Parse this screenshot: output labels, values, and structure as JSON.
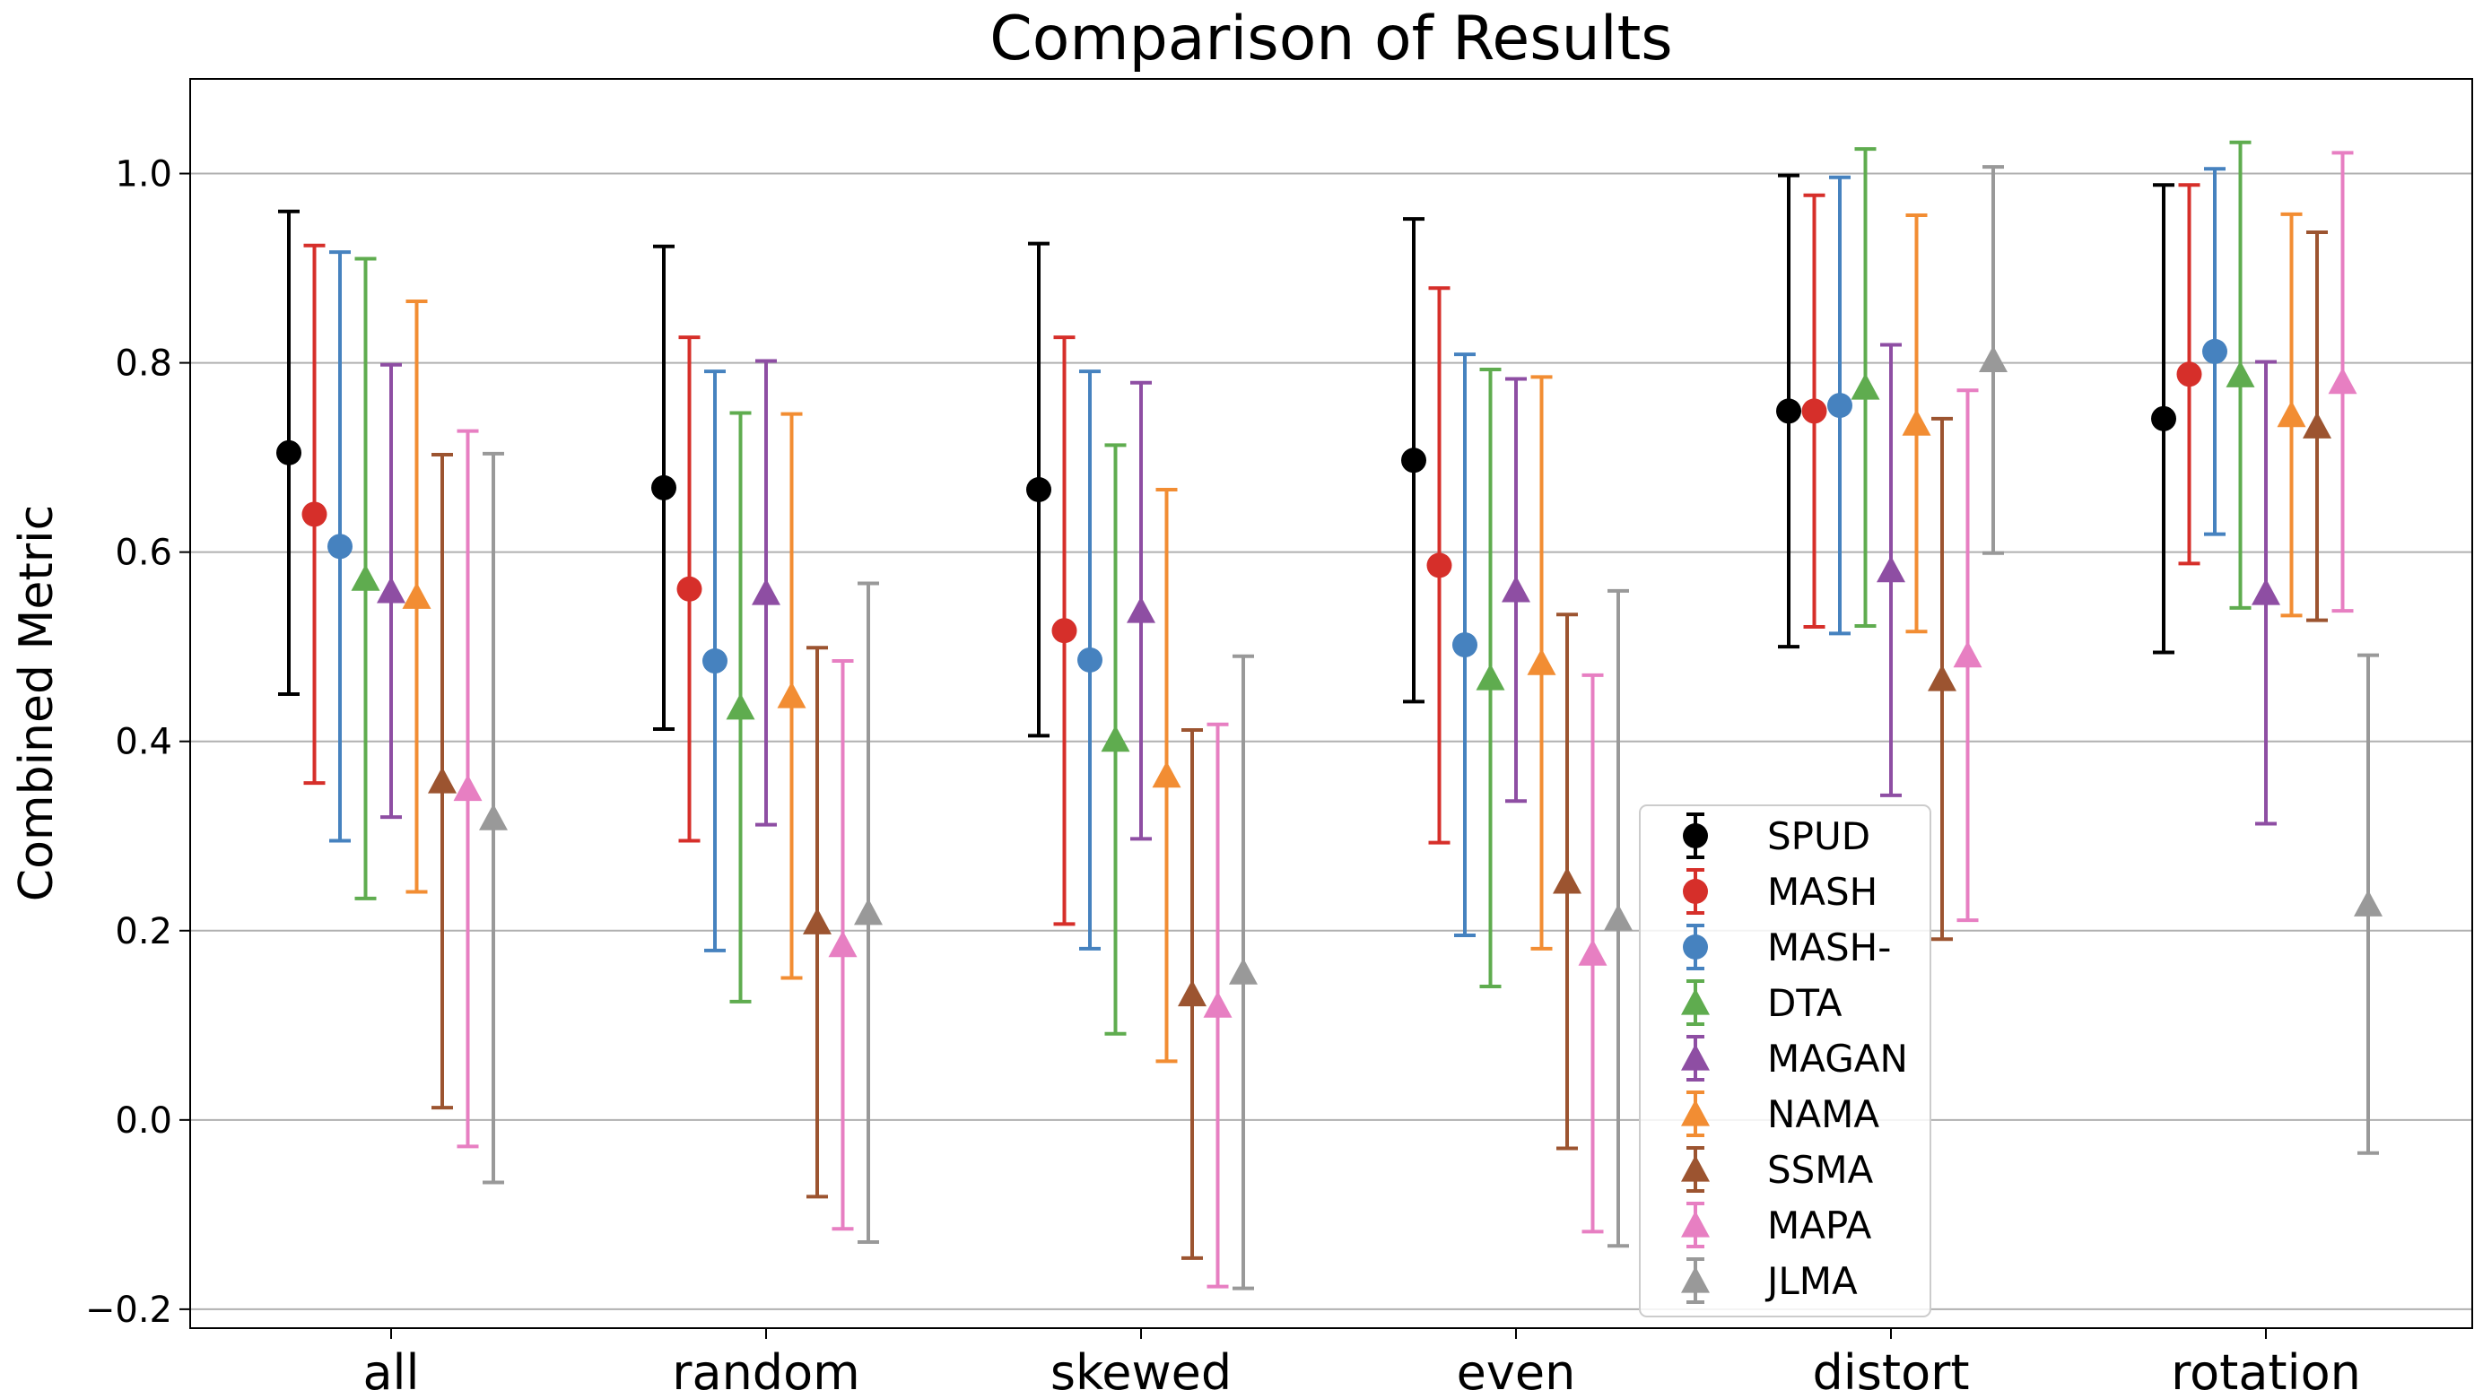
{
  "chart_data": {
    "type": "errorbar",
    "title": "Comparison of Results",
    "xlabel": "",
    "ylabel": "Combined Metric",
    "ylim": [
      -0.22,
      1.1
    ],
    "yticks": [
      -0.2,
      0.0,
      0.2,
      0.4,
      0.6,
      0.8,
      1.0
    ],
    "ytick_labels": [
      "−0.2",
      "0.0",
      "0.2",
      "0.4",
      "0.6",
      "0.8",
      "1.0"
    ],
    "grid": "horizontal",
    "legend_position": "lower-center",
    "categories": [
      "all",
      "random",
      "skewed",
      "even",
      "distort",
      "rotation"
    ],
    "series": [
      {
        "name": "SPUD",
        "color": "#000000",
        "marker": "circle",
        "values": [
          0.705,
          0.668,
          0.666,
          0.697,
          0.749,
          0.741
        ],
        "errors": [
          0.255,
          0.255,
          0.26,
          0.255,
          0.249,
          0.247
        ]
      },
      {
        "name": "MASH",
        "color": "#d62f2a",
        "marker": "circle",
        "values": [
          0.64,
          0.561,
          0.517,
          0.586,
          0.749,
          0.788
        ],
        "errors": [
          0.284,
          0.266,
          0.31,
          0.293,
          0.228,
          0.2
        ]
      },
      {
        "name": "MASH-",
        "color": "#4682bf",
        "marker": "circle",
        "values": [
          0.606,
          0.485,
          0.486,
          0.502,
          0.755,
          0.812
        ],
        "errors": [
          0.311,
          0.306,
          0.305,
          0.307,
          0.241,
          0.193
        ]
      },
      {
        "name": "DTA",
        "color": "#5fac4f",
        "marker": "triangle",
        "values": [
          0.572,
          0.436,
          0.402,
          0.467,
          0.774,
          0.787
        ],
        "errors": [
          0.338,
          0.311,
          0.311,
          0.326,
          0.252,
          0.246
        ]
      },
      {
        "name": "MAGAN",
        "color": "#8e4ea3",
        "marker": "triangle",
        "values": [
          0.559,
          0.557,
          0.538,
          0.56,
          0.581,
          0.557
        ],
        "errors": [
          0.239,
          0.245,
          0.241,
          0.223,
          0.238,
          0.244
        ]
      },
      {
        "name": "NAMA",
        "color": "#f28d33",
        "marker": "triangle",
        "values": [
          0.553,
          0.448,
          0.364,
          0.483,
          0.736,
          0.745
        ],
        "errors": [
          0.312,
          0.298,
          0.302,
          0.302,
          0.22,
          0.212
        ]
      },
      {
        "name": "SSMA",
        "color": "#9c5430",
        "marker": "triangle",
        "values": [
          0.358,
          0.209,
          0.133,
          0.252,
          0.466,
          0.733
        ],
        "errors": [
          0.345,
          0.29,
          0.279,
          0.282,
          0.275,
          0.205
        ]
      },
      {
        "name": "MAPA",
        "color": "#e77fc2",
        "marker": "triangle",
        "values": [
          0.35,
          0.185,
          0.121,
          0.176,
          0.491,
          0.78
        ],
        "errors": [
          0.378,
          0.3,
          0.297,
          0.294,
          0.28,
          0.242
        ]
      },
      {
        "name": "JLMA",
        "color": "#999999",
        "marker": "triangle",
        "values": [
          0.319,
          0.219,
          0.156,
          0.213,
          0.803,
          0.228
        ],
        "errors": [
          0.385,
          0.348,
          0.334,
          0.346,
          0.204,
          0.263
        ]
      }
    ]
  }
}
